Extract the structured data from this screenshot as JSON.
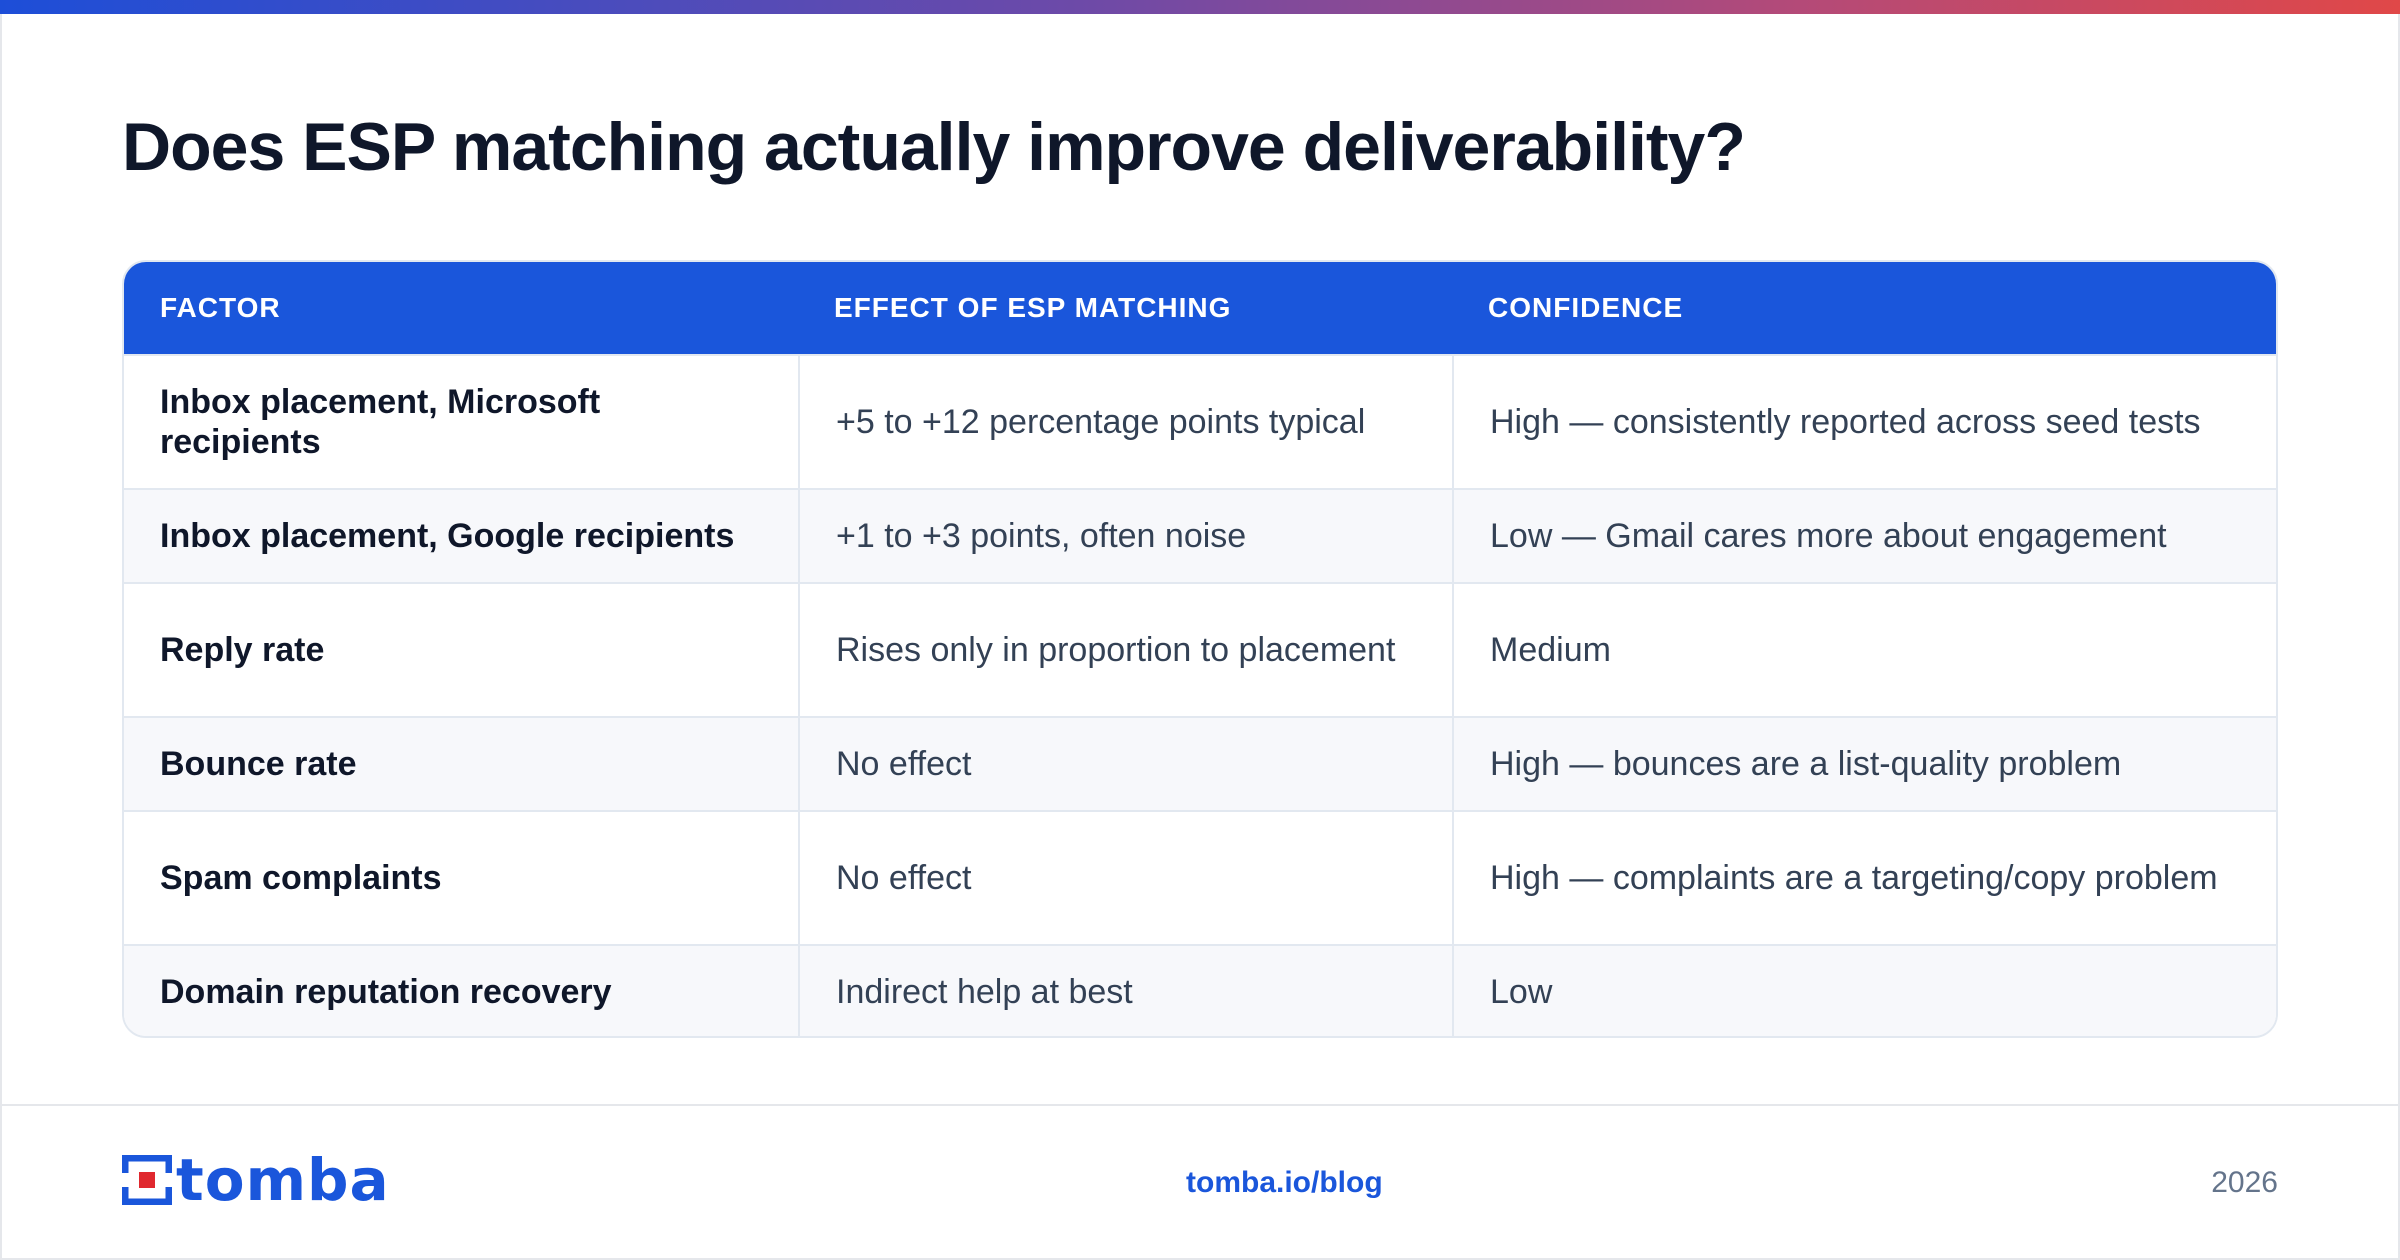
{
  "title": "Does ESP matching actually improve deliverability?",
  "table": {
    "headers": [
      "FACTOR",
      "EFFECT OF ESP MATCHING",
      "CONFIDENCE"
    ],
    "rows": [
      [
        "Inbox placement, Microsoft recipients",
        "+5 to +12 percentage points typical",
        "High — consistently reported across seed tests"
      ],
      [
        "Inbox placement, Google recipients",
        "+1 to +3 points, often noise",
        "Low — Gmail cares more about engagement"
      ],
      [
        "Reply rate",
        "Rises only in proportion to placement",
        "Medium"
      ],
      [
        "Bounce rate",
        "No effect",
        "High — bounces are a list-quality problem"
      ],
      [
        "Spam complaints",
        "No effect",
        "High — complaints are a targeting/copy problem"
      ],
      [
        "Domain reputation recovery",
        "Indirect help at best",
        "Low"
      ]
    ]
  },
  "footer": {
    "logo_text": "tomba",
    "link": "tomba.io/blog",
    "year": "2026"
  },
  "colors": {
    "accent": "#1a56db",
    "logo_red": "#e0282e",
    "title": "#0f172a"
  }
}
